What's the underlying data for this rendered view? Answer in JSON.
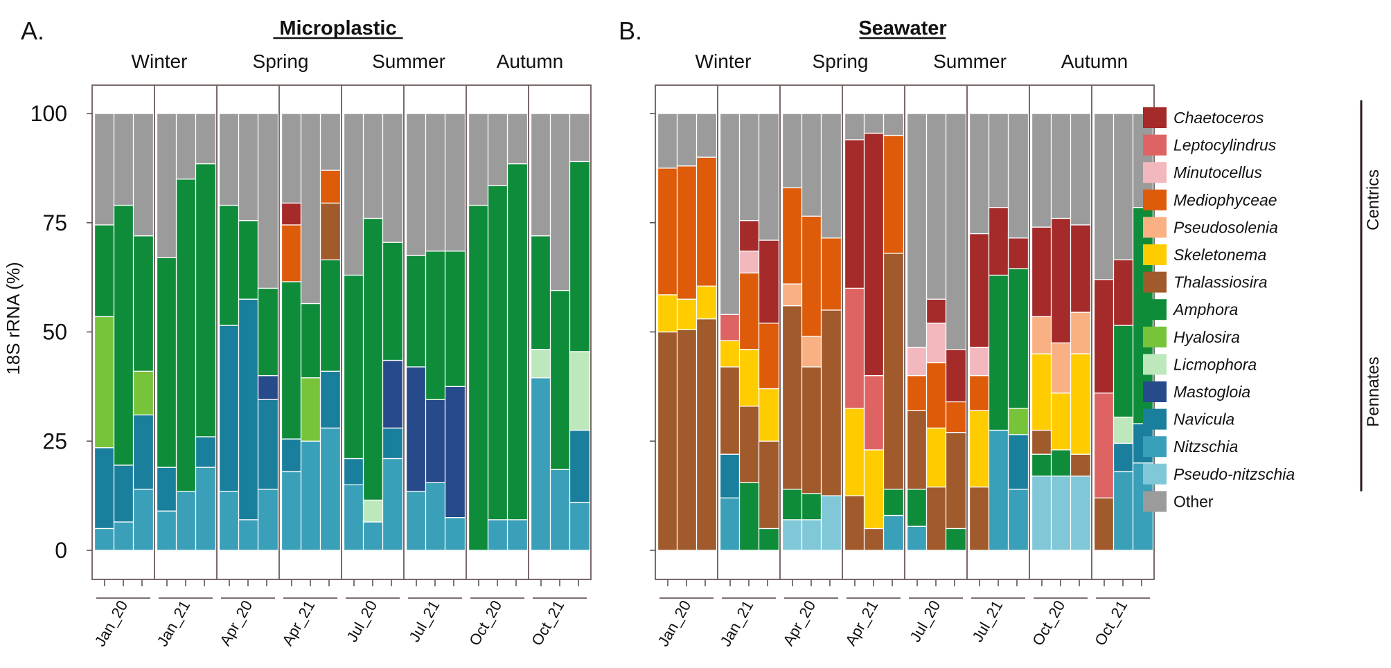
{
  "chart_data": {
    "type": "bar",
    "subtype": "stacked",
    "ylabel": "18S rRNA (%)",
    "ylim": [
      0,
      100
    ],
    "yticks": [
      0,
      25,
      50,
      75,
      100
    ],
    "genera": [
      "Pseudo-nitzschia",
      "Nitzschia",
      "Navicula",
      "Mastogloia",
      "Licmophora",
      "Hyalosira",
      "Amphora",
      "Thalassiosira",
      "Skeletonema",
      "Pseudosolenia",
      "Mediophyceae",
      "Minutocellus",
      "Leptocylindrus",
      "Chaetoceros",
      "Other"
    ],
    "colors": {
      "Chaetoceros": "#a52a2a",
      "Leptocylindrus": "#de6464",
      "Minutocellus": "#f2b8bd",
      "Mediophyceae": "#de5b0a",
      "Pseudosolenia": "#f9b183",
      "Skeletonema": "#ffcc00",
      "Thalassiosira": "#a05a2c",
      "Amphora": "#0e8c3a",
      "Hyalosira": "#77c43b",
      "Licmophora": "#bde8bc",
      "Mastogloia": "#274a8a",
      "Navicula": "#1a7f9c",
      "Nitzschia": "#3a9fb8",
      "Pseudo-nitzschia": "#80c8d8",
      "Other": "#9b9b9b"
    },
    "legend": [
      {
        "name": "Chaetoceros",
        "italic": true
      },
      {
        "name": "Leptocylindrus",
        "italic": true
      },
      {
        "name": "Minutocellus",
        "italic": true
      },
      {
        "name": "Mediophyceae",
        "italic": true
      },
      {
        "name": "Pseudosolenia",
        "italic": true
      },
      {
        "name": "Skeletonema",
        "italic": true
      },
      {
        "name": "Thalassiosira",
        "italic": true
      },
      {
        "name": "Amphora",
        "italic": true
      },
      {
        "name": "Hyalosira",
        "italic": true
      },
      {
        "name": "Licmophora",
        "italic": true
      },
      {
        "name": "Mastogloia",
        "italic": true
      },
      {
        "name": "Navicula",
        "italic": true
      },
      {
        "name": "Nitzschia",
        "italic": true
      },
      {
        "name": "Pseudo-nitzschia",
        "italic": true
      },
      {
        "name": "Other",
        "italic": false
      }
    ],
    "groups": [
      {
        "label": "Centrics",
        "from": "Chaetoceros",
        "to": "Thalassiosira"
      },
      {
        "label": "Pennates",
        "from": "Amphora",
        "to": "Pseudo-nitzschia"
      }
    ],
    "panels": [
      {
        "letter": "A.",
        "title": "Microplastic",
        "seasons": [
          "Winter",
          "Spring",
          "Summer",
          "Autumn"
        ],
        "groups": [
          {
            "label": "Jan_20",
            "bars": [
              {
                "Nitzschia": 5,
                "Navicula": 18.5,
                "Hyalosira": 30,
                "Amphora": 21
              },
              {
                "Nitzschia": 6.5,
                "Navicula": 13,
                "Amphora": 59.5
              },
              {
                "Nitzschia": 14,
                "Navicula": 17,
                "Hyalosira": 10,
                "Amphora": 31
              }
            ]
          },
          {
            "label": "Jan_21",
            "bars": [
              {
                "Nitzschia": 9,
                "Navicula": 10,
                "Amphora": 48
              },
              {
                "Nitzschia": 13.5,
                "Amphora": 71.5
              },
              {
                "Nitzschia": 19,
                "Navicula": 7,
                "Amphora": 62.5
              }
            ]
          },
          {
            "label": "Apr_20",
            "bars": [
              {
                "Nitzschia": 13.5,
                "Navicula": 38,
                "Amphora": 27.5
              },
              {
                "Nitzschia": 7,
                "Navicula": 50.5,
                "Amphora": 18
              },
              {
                "Nitzschia": 14,
                "Navicula": 20.5,
                "Mastogloia": 5.5,
                "Amphora": 20
              }
            ]
          },
          {
            "label": "Apr_21",
            "bars": [
              {
                "Nitzschia": 18,
                "Navicula": 7.5,
                "Amphora": 36,
                "Mediophyceae": 13,
                "Chaetoceros": 5
              },
              {
                "Nitzschia": 25,
                "Hyalosira": 14.5,
                "Amphora": 17
              },
              {
                "Nitzschia": 28,
                "Navicula": 13,
                "Amphora": 25.5,
                "Thalassiosira": 13,
                "Mediophyceae": 7.5
              }
            ]
          },
          {
            "label": "Jul_20",
            "bars": [
              {
                "Nitzschia": 15,
                "Navicula": 6,
                "Amphora": 42
              },
              {
                "Nitzschia": 6.5,
                "Licmophora": 5,
                "Amphora": 64.5
              },
              {
                "Nitzschia": 21,
                "Navicula": 7,
                "Mastogloia": 15.5,
                "Amphora": 27
              }
            ]
          },
          {
            "label": "Jul_21",
            "bars": [
              {
                "Nitzschia": 13.5,
                "Mastogloia": 28.5,
                "Amphora": 25.5
              },
              {
                "Nitzschia": 15.5,
                "Mastogloia": 19,
                "Amphora": 34
              },
              {
                "Nitzschia": 7.5,
                "Mastogloia": 30,
                "Amphora": 31
              }
            ]
          },
          {
            "label": "Oct_20",
            "bars": [
              {
                "Amphora": 79
              },
              {
                "Nitzschia": 7,
                "Amphora": 76.5
              },
              {
                "Nitzschia": 7,
                "Amphora": 81.5
              }
            ]
          },
          {
            "label": "Oct_21",
            "bars": [
              {
                "Nitzschia": 39.5,
                "Licmophora": 6.5,
                "Amphora": 26
              },
              {
                "Nitzschia": 18.5,
                "Amphora": 41
              },
              {
                "Nitzschia": 11,
                "Navicula": 16.5,
                "Licmophora": 18,
                "Amphora": 43.5
              }
            ]
          }
        ]
      },
      {
        "letter": "B.",
        "title": "Seawater",
        "seasons": [
          "Winter",
          "Spring",
          "Summer",
          "Autumn"
        ],
        "groups": [
          {
            "label": "Jan_20",
            "bars": [
              {
                "Thalassiosira": 50,
                "Skeletonema": 8.5,
                "Mediophyceae": 29
              },
              {
                "Thalassiosira": 50.5,
                "Skeletonema": 7,
                "Mediophyceae": 30.5
              },
              {
                "Thalassiosira": 53,
                "Skeletonema": 7.5,
                "Mediophyceae": 29.5
              }
            ]
          },
          {
            "label": "Jan_21",
            "bars": [
              {
                "Nitzschia": 12,
                "Navicula": 10,
                "Leptocylindrus": 6,
                "Thalassiosira": 20,
                "Skeletonema": 6
              },
              {
                "Amphora": 15.5,
                "Thalassiosira": 17.5,
                "Skeletonema": 13,
                "Minutocellus": 5,
                "Mediophyceae": 17.5,
                "Chaetoceros": 7
              },
              {
                "Amphora": 5,
                "Thalassiosira": 20,
                "Skeletonema": 12,
                "Mediophyceae": 15,
                "Chaetoceros": 19
              }
            ]
          },
          {
            "label": "Apr_20",
            "bars": [
              {
                "Pseudo-nitzschia": 7,
                "Amphora": 7,
                "Thalassiosira": 42,
                "Pseudosolenia": 5,
                "Mediophyceae": 22
              },
              {
                "Pseudo-nitzschia": 7,
                "Amphora": 6,
                "Thalassiosira": 29,
                "Pseudosolenia": 7,
                "Mediophyceae": 27.5
              },
              {
                "Pseudo-nitzschia": 12.5,
                "Thalassiosira": 42.5,
                "Mediophyceae": 16.5
              }
            ]
          },
          {
            "label": "Apr_21",
            "bars": [
              {
                "Leptocylindrus": 27.5,
                "Thalassiosira": 12.5,
                "Skeletonema": 20,
                "Chaetoceros": 34
              },
              {
                "Leptocylindrus": 17,
                "Thalassiosira": 5,
                "Skeletonema": 18,
                "Chaetoceros": 55.5
              },
              {
                "Nitzschia": 8,
                "Amphora": 6,
                "Thalassiosira": 54,
                "Mediophyceae": 27
              }
            ]
          },
          {
            "label": "Jul_20",
            "bars": [
              {
                "Nitzschia": 5.5,
                "Amphora": 8.5,
                "Thalassiosira": 18,
                "Mediophyceae": 8,
                "Minutocellus": 6.5
              },
              {
                "Thalassiosira": 14.5,
                "Skeletonema": 13.5,
                "Mediophyceae": 15,
                "Minutocellus": 9,
                "Chaetoceros": 5.5
              },
              {
                "Amphora": 5,
                "Thalassiosira": 22,
                "Mediophyceae": 7,
                "Chaetoceros": 12
              }
            ]
          },
          {
            "label": "Jul_21",
            "bars": [
              {
                "Thalassiosira": 14.5,
                "Skeletonema": 17.5,
                "Mediophyceae": 8,
                "Minutocellus": 6.5,
                "Chaetoceros": 26
              },
              {
                "Nitzschia": 27.5,
                "Amphora": 35.5,
                "Chaetoceros": 15.5
              },
              {
                "Nitzschia": 14,
                "Navicula": 12.5,
                "Hyalosira": 6,
                "Amphora": 32,
                "Chaetoceros": 7
              }
            ]
          },
          {
            "label": "Oct_20",
            "bars": [
              {
                "Pseudo-nitzschia": 17,
                "Amphora": 5,
                "Thalassiosira": 5.5,
                "Skeletonema": 17.5,
                "Pseudosolenia": 8.5,
                "Chaetoceros": 20.5
              },
              {
                "Pseudo-nitzschia": 17,
                "Amphora": 6,
                "Skeletonema": 13,
                "Pseudosolenia": 11.5,
                "Chaetoceros": 28.5
              },
              {
                "Pseudo-nitzschia": 17,
                "Thalassiosira": 5,
                "Skeletonema": 23,
                "Pseudosolenia": 9.5,
                "Chaetoceros": 20
              }
            ]
          },
          {
            "label": "Oct_21",
            "bars": [
              {
                "Leptocylindrus": 24,
                "Thalassiosira": 12,
                "Chaetoceros": 26
              },
              {
                "Nitzschia": 18,
                "Navicula": 6.5,
                "Licmophora": 6,
                "Amphora": 21,
                "Chaetoceros": 15
              },
              {
                "Nitzschia": 20,
                "Navicula": 9,
                "Amphora": 49.5
              }
            ]
          }
        ]
      }
    ]
  }
}
